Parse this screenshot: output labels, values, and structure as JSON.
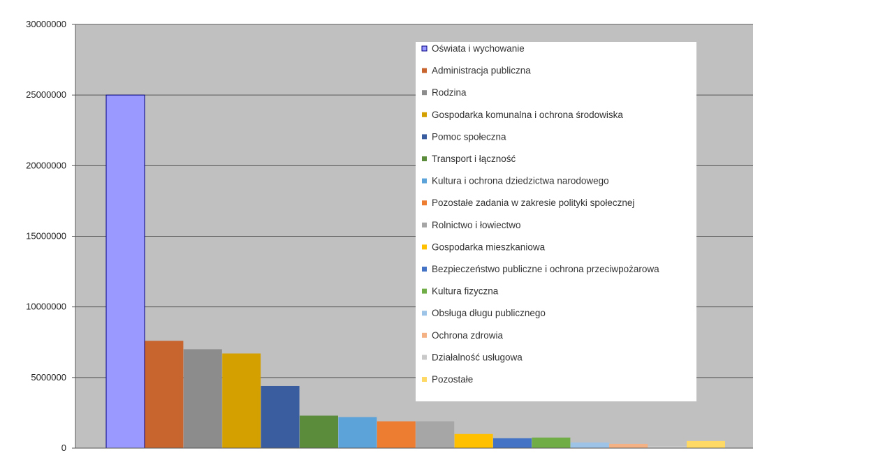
{
  "chart_data": {
    "type": "bar",
    "title": "",
    "xlabel": "",
    "ylabel": "",
    "ylim": [
      0,
      30000000
    ],
    "y_ticks": [
      "0",
      "5000000",
      "10000000",
      "15000000",
      "20000000",
      "25000000",
      "30000000"
    ],
    "grid": true,
    "legend_position": "right",
    "plot_background": "#c0c0c0",
    "categories": [
      "Oświata i wychowanie",
      "Administracja publiczna",
      "Rodzina",
      "Gospodarka komunalna i ochrona środowiska",
      "Pomoc społeczna",
      "Transport i łączność",
      "Kultura i ochrona dziedzictwa narodowego",
      "Pozostałe zadania w zakresie polityki społecznej",
      "Rolnictwo i łowiectwo",
      "Gospodarka mieszkaniowa",
      "Bezpieczeństwo publiczne i ochrona przeciwpożarowa",
      "Kultura fizyczna",
      "Obsługa długu publicznego",
      "Ochrona zdrowia",
      "Działalność usługowa",
      "Pozostałe"
    ],
    "values": [
      25000000,
      7600000,
      7000000,
      6700000,
      4400000,
      2300000,
      2200000,
      1900000,
      1900000,
      1000000,
      700000,
      750000,
      400000,
      300000,
      150000,
      500000
    ],
    "colors": [
      "#9999ff",
      "#c8642d",
      "#8c8c8c",
      "#d4a000",
      "#3a5da0",
      "#5a8c3c",
      "#5ba3d9",
      "#ed7d31",
      "#a6a6a6",
      "#ffc000",
      "#4472c4",
      "#70ad47",
      "#9dc3e6",
      "#f4b183",
      "#c9c9c9",
      "#ffd966"
    ]
  }
}
